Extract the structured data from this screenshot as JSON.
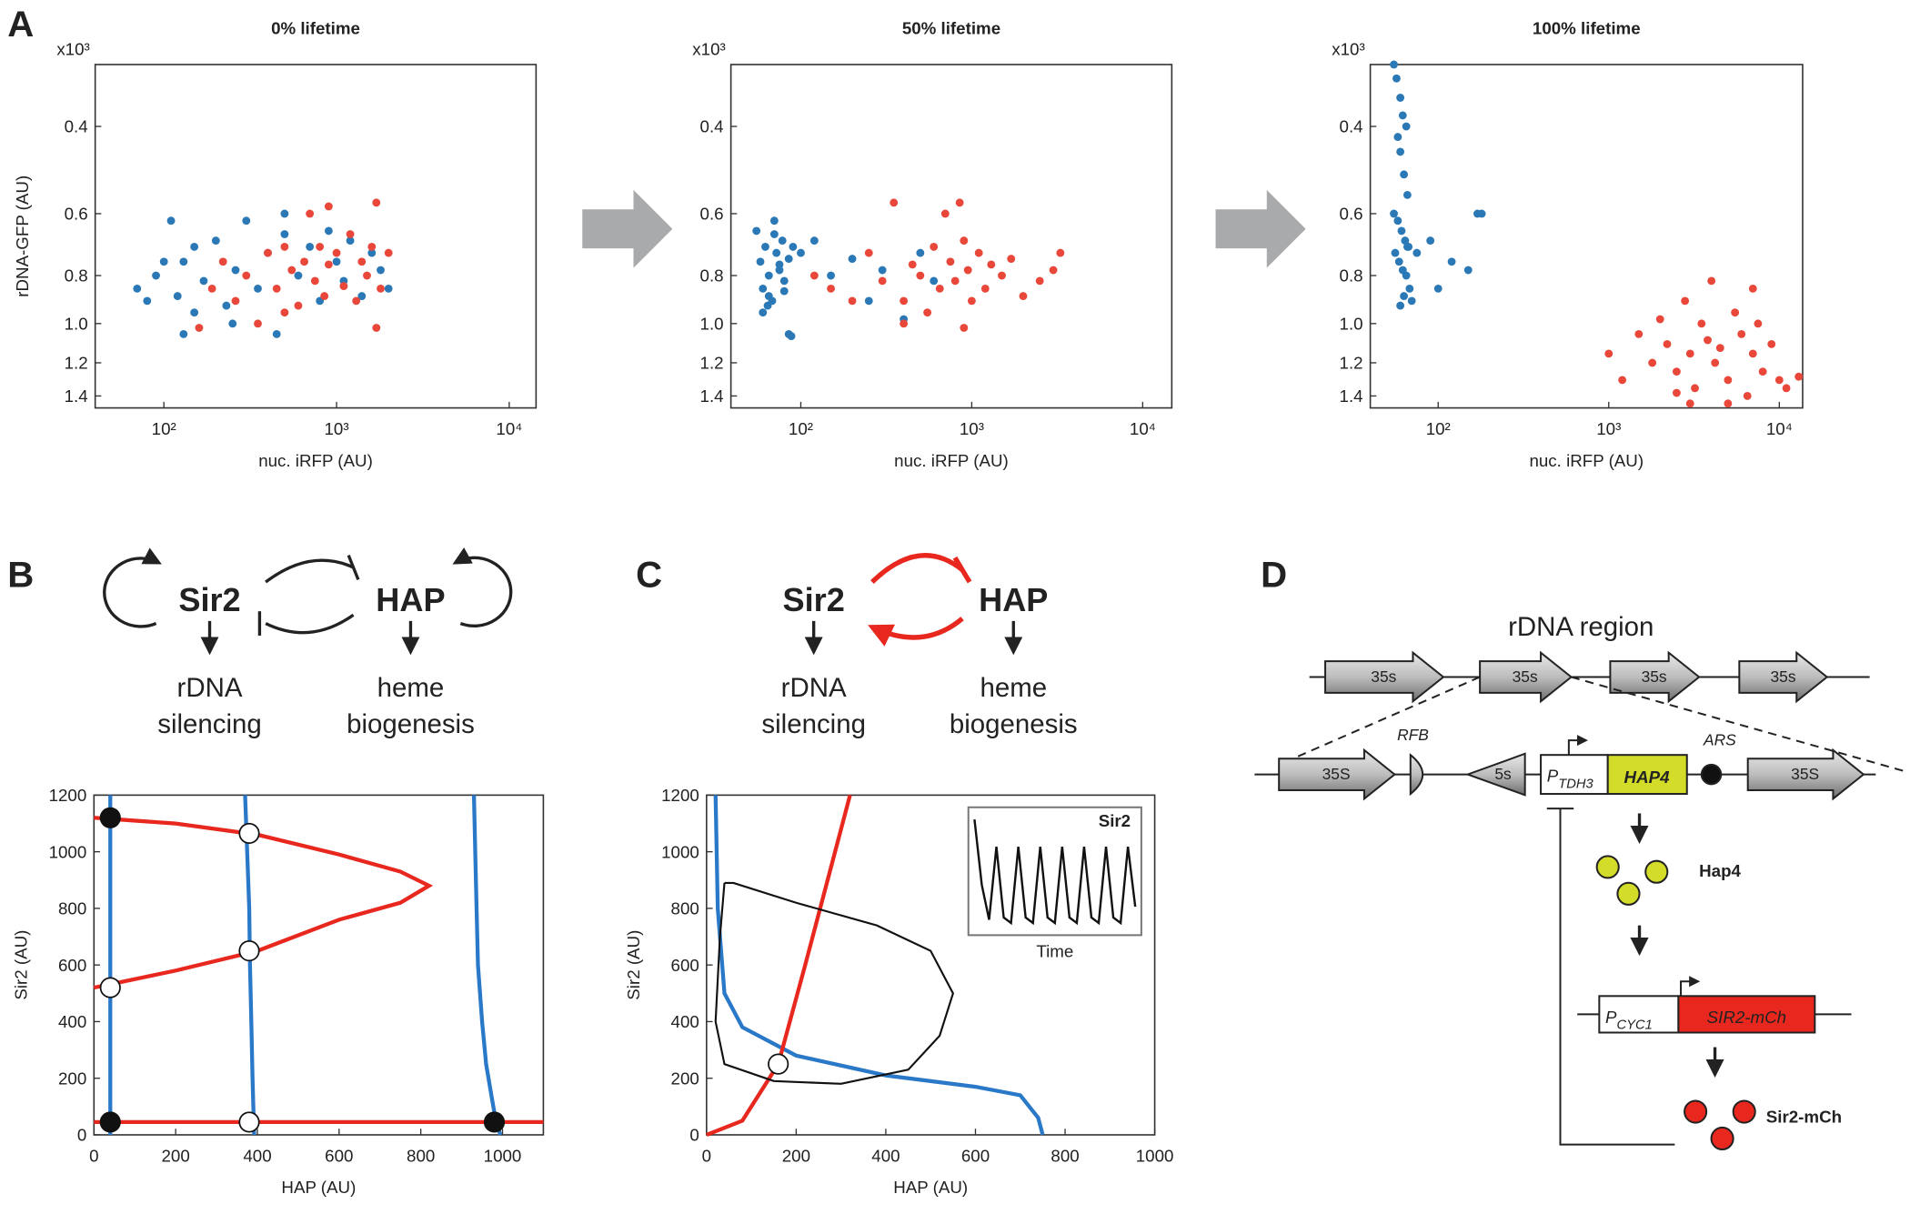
{
  "panel_labels": [
    "A",
    "B",
    "C",
    "D"
  ],
  "chart_data": [
    {
      "type": "scatter",
      "title": "0% lifetime",
      "ylabel": "rDNA-GFP (AU)",
      "xlabel": "nuc. iRFP (AU)",
      "y_multiplier": "x10³",
      "log_x": true,
      "log_y": true,
      "y_inverted": true,
      "xlim": [
        40,
        14300
      ],
      "xticks": [
        {
          "value": 100,
          "label": "10²"
        },
        {
          "value": 1000,
          "label": "10³"
        },
        {
          "value": 10000,
          "label": "10⁴"
        }
      ],
      "ylim": [
        0.3,
        1.48
      ],
      "yticks": [
        0.4,
        0.6,
        0.8,
        {
          "value": 1.0,
          "label": "1.0"
        },
        1.2,
        1.4
      ],
      "series": [
        {
          "color": "#2a78b5",
          "x": [
            70,
            80,
            90,
            100,
            110,
            120,
            130,
            150,
            170,
            200,
            230,
            260,
            300,
            350,
            400,
            450,
            500,
            600,
            700,
            800,
            900,
            1000,
            1100,
            1200,
            1400,
            1600,
            1800,
            2000,
            150,
            250,
            500,
            130
          ],
          "values": [
            0.85,
            0.9,
            0.8,
            0.75,
            0.62,
            0.88,
            1.05,
            0.7,
            0.82,
            0.68,
            0.92,
            0.78,
            0.62,
            0.85,
            0.72,
            1.05,
            0.66,
            0.8,
            0.7,
            0.9,
            0.65,
            0.75,
            0.82,
            0.68,
            0.88,
            0.72,
            0.78,
            0.85,
            0.95,
            1.0,
            0.6,
            0.75
          ]
        },
        {
          "color": "#e8473a",
          "x": [
            160,
            190,
            220,
            260,
            300,
            350,
            400,
            450,
            500,
            550,
            600,
            650,
            700,
            750,
            800,
            850,
            900,
            1000,
            1100,
            1200,
            1300,
            1400,
            1500,
            1600,
            1700,
            1800,
            2000,
            500,
            900,
            1700
          ],
          "values": [
            1.02,
            0.85,
            0.75,
            0.9,
            0.8,
            1.0,
            0.72,
            0.85,
            0.7,
            0.78,
            0.92,
            0.75,
            0.6,
            0.82,
            0.7,
            0.88,
            0.76,
            0.72,
            0.84,
            0.66,
            0.9,
            0.75,
            0.8,
            0.7,
            0.57,
            0.85,
            0.72,
            0.95,
            0.58,
            1.02
          ]
        }
      ]
    },
    {
      "type": "scatter",
      "title": "50% lifetime",
      "xlabel": "nuc. iRFP (AU)",
      "y_multiplier": "x10³",
      "log_x": true,
      "log_y": true,
      "y_inverted": true,
      "xlim": [
        39,
        14800
      ],
      "xticks": [
        {
          "value": 100,
          "label": "10²"
        },
        {
          "value": 1000,
          "label": "10³"
        },
        {
          "value": 10000,
          "label": "10⁴"
        }
      ],
      "ylim": [
        0.3,
        1.48
      ],
      "yticks": [
        0.4,
        0.6,
        0.8,
        {
          "value": 1.0,
          "label": "1.0"
        },
        1.2,
        1.4
      ],
      "series": [
        {
          "color": "#2a78b5",
          "x": [
            55,
            58,
            60,
            62,
            65,
            68,
            70,
            72,
            75,
            78,
            80,
            85,
            90,
            60,
            65,
            70,
            75,
            80,
            100,
            120,
            150,
            200,
            250,
            300,
            400,
            500,
            600,
            85,
            88,
            64
          ],
          "values": [
            0.65,
            0.75,
            0.85,
            0.7,
            0.8,
            0.9,
            0.62,
            0.72,
            0.78,
            0.68,
            0.82,
            0.74,
            0.7,
            0.95,
            0.88,
            0.66,
            0.76,
            0.86,
            0.72,
            0.68,
            0.8,
            0.74,
            0.9,
            0.78,
            0.98,
            0.72,
            0.82,
            1.05,
            1.06,
            0.92
          ]
        },
        {
          "color": "#e8473a",
          "x": [
            120,
            150,
            200,
            250,
            300,
            350,
            400,
            450,
            500,
            550,
            600,
            650,
            700,
            750,
            800,
            850,
            900,
            950,
            1000,
            1100,
            1200,
            1300,
            1500,
            1700,
            2000,
            2500,
            3000,
            3300,
            400,
            900
          ],
          "values": [
            0.8,
            0.85,
            0.9,
            0.72,
            0.82,
            0.57,
            0.9,
            0.76,
            0.8,
            0.95,
            0.7,
            0.85,
            0.6,
            0.75,
            0.82,
            0.57,
            0.68,
            0.78,
            0.9,
            0.72,
            0.85,
            0.76,
            0.8,
            0.74,
            0.88,
            0.82,
            0.78,
            0.72,
            1.0,
            1.02
          ]
        }
      ]
    },
    {
      "type": "scatter",
      "title": "100% lifetime",
      "xlabel": "nuc. iRFP (AU)",
      "y_multiplier": "x10³",
      "log_x": true,
      "log_y": true,
      "y_inverted": true,
      "xlim": [
        40,
        13700
      ],
      "xticks": [
        {
          "value": 100,
          "label": "10²"
        },
        {
          "value": 1000,
          "label": "10³"
        },
        {
          "value": 10000,
          "label": "10⁴"
        }
      ],
      "ylim": [
        0.3,
        1.48
      ],
      "yticks": [
        0.4,
        0.6,
        0.8,
        {
          "value": 1.0,
          "label": "1.0"
        },
        1.2,
        1.4
      ],
      "series": [
        {
          "color": "#2a78b5",
          "x": [
            55,
            57,
            60,
            62,
            65,
            58,
            60,
            63,
            66,
            55,
            58,
            61,
            64,
            67,
            56,
            59,
            62,
            65,
            68,
            70,
            60,
            63,
            66,
            75,
            90,
            100,
            120,
            150,
            170,
            180
          ],
          "values": [
            0.3,
            0.32,
            0.35,
            0.38,
            0.4,
            0.42,
            0.45,
            0.5,
            0.55,
            0.6,
            0.62,
            0.65,
            0.68,
            0.7,
            0.72,
            0.75,
            0.78,
            0.8,
            0.85,
            0.9,
            0.92,
            0.88,
            0.7,
            0.72,
            0.68,
            0.85,
            0.75,
            0.78,
            0.6,
            0.6
          ]
        },
        {
          "color": "#e8473a",
          "x": [
            1000,
            1200,
            1500,
            1800,
            2000,
            2200,
            2500,
            2800,
            3000,
            3200,
            3500,
            3800,
            4000,
            4200,
            4500,
            5000,
            5500,
            6000,
            6500,
            7000,
            7500,
            8000,
            9000,
            10000,
            11000,
            13000,
            3000,
            5000,
            7000,
            2500
          ],
          "values": [
            1.15,
            1.3,
            1.05,
            1.2,
            0.98,
            1.1,
            1.25,
            0.9,
            1.15,
            1.35,
            1.0,
            1.08,
            0.82,
            1.2,
            1.12,
            1.3,
            0.95,
            1.05,
            1.4,
            1.15,
            1.0,
            1.25,
            1.1,
            1.3,
            1.35,
            1.28,
            1.45,
            1.45,
            0.85,
            1.38
          ]
        }
      ]
    },
    {
      "type": "line",
      "xlabel": "HAP (AU)",
      "ylabel": "Sir2 (AU)",
      "xlim": [
        0,
        1100
      ],
      "xticks": [
        0,
        200,
        400,
        600,
        800,
        1000
      ],
      "ylim": [
        0,
        1200
      ],
      "yticks": [
        0,
        200,
        400,
        600,
        800,
        1000,
        1200
      ],
      "series": [
        {
          "color": "#2a78c8",
          "x": [
            40,
            40
          ],
          "values": [
            0,
            1200
          ]
        },
        {
          "color": "#2a78c8",
          "x": [
            370,
            375,
            380,
            382,
            385,
            388,
            392
          ],
          "values": [
            1200,
            1000,
            800,
            600,
            400,
            200,
            0
          ]
        },
        {
          "color": "#2a78c8",
          "x": [
            930,
            935,
            940,
            950,
            960,
            975,
            985,
            995
          ],
          "values": [
            1200,
            900,
            600,
            400,
            250,
            120,
            40,
            0
          ]
        },
        {
          "color": "#e8281e",
          "x": [
            0,
            1100
          ],
          "values": [
            45,
            45
          ]
        },
        {
          "color": "#e8281e",
          "x": [
            0,
            200,
            400,
            600,
            750,
            820,
            750,
            600,
            400,
            200,
            0
          ],
          "values": [
            1120,
            1100,
            1060,
            990,
            930,
            880,
            820,
            760,
            650,
            580,
            520
          ]
        }
      ],
      "markers": [
        {
          "x": 40,
          "y": 1120,
          "fill": "#111111"
        },
        {
          "x": 40,
          "y": 45,
          "fill": "#111111"
        },
        {
          "x": 980,
          "y": 45,
          "fill": "#111111"
        },
        {
          "x": 380,
          "y": 1065,
          "fill": "#ffffff"
        },
        {
          "x": 380,
          "y": 650,
          "fill": "#ffffff"
        },
        {
          "x": 40,
          "y": 520,
          "fill": "#ffffff"
        },
        {
          "x": 380,
          "y": 45,
          "fill": "#ffffff"
        }
      ]
    },
    {
      "type": "line",
      "xlabel": "HAP (AU)",
      "ylabel": "Sir2 (AU)",
      "xlim": [
        0,
        1000
      ],
      "xticks": [
        0,
        200,
        400,
        600,
        800,
        1000
      ],
      "ylim": [
        0,
        1200
      ],
      "yticks": [
        0,
        200,
        400,
        600,
        800,
        1000,
        1200
      ],
      "series": [
        {
          "color": "#2a78c8",
          "x": [
            20,
            25,
            40,
            80,
            200,
            400,
            600,
            700,
            740,
            750
          ],
          "values": [
            1200,
            800,
            500,
            380,
            280,
            210,
            170,
            140,
            60,
            0
          ]
        },
        {
          "color": "#e8281e",
          "x": [
            0,
            80,
            160,
            220,
            270,
            320
          ],
          "values": [
            0,
            50,
            250,
            600,
            900,
            1200
          ]
        },
        {
          "color": "#111111",
          "x": [
            40,
            30,
            20,
            40,
            150,
            300,
            450,
            520,
            550,
            500,
            380,
            200,
            60,
            40
          ],
          "values": [
            890,
            700,
            400,
            250,
            190,
            180,
            230,
            350,
            500,
            650,
            740,
            820,
            890,
            890
          ]
        }
      ],
      "markers": [
        {
          "x": 160,
          "y": 250,
          "fill": "#ffffff"
        }
      ],
      "inset": {
        "title": "Sir2",
        "xlabel": "Time",
        "color": "#111111",
        "values": [
          1.0,
          0.4,
          0.08,
          0.75,
          0.1,
          0.05,
          0.75,
          0.1,
          0.05,
          0.75,
          0.1,
          0.05,
          0.75,
          0.1,
          0.05,
          0.75,
          0.1,
          0.05,
          0.75,
          0.1,
          0.05,
          0.75,
          0.2
        ]
      }
    }
  ],
  "diagram_b": {
    "nodes": [
      "Sir2",
      "HAP"
    ],
    "outputs": [
      [
        "rDNA",
        "silencing"
      ],
      [
        "heme",
        "biogenesis"
      ]
    ]
  },
  "diagram_c": {
    "nodes": [
      "Sir2",
      "HAP"
    ],
    "outputs": [
      [
        "rDNA",
        "silencing"
      ],
      [
        "heme",
        "biogenesis"
      ]
    ]
  },
  "diagram_d": {
    "title": "rDNA region",
    "repeats": [
      "35s",
      "35s",
      "35s",
      "35s"
    ],
    "insert": {
      "left": "35S",
      "rfb": "RFB",
      "fives": "5s",
      "promoter": {
        "main": "P",
        "sub": "TDH3"
      },
      "gene": "HAP4",
      "ars": "ARS",
      "right": "35S"
    },
    "protein1": "Hap4",
    "reporter": {
      "promoter": {
        "main": "P",
        "sub": "CYC1"
      },
      "gene": "SIR2-mCh"
    },
    "protein2": "Sir2-mCh"
  }
}
